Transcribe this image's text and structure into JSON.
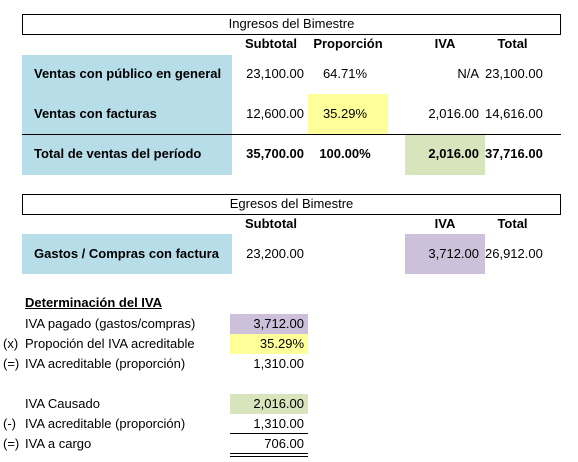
{
  "ingresos": {
    "title": "Ingresos del Bimestre",
    "headers": [
      "Subtotal",
      "Proporción",
      "IVA",
      "Total"
    ],
    "rows": [
      {
        "label": "Ventas con público en general",
        "cells": [
          "23,100.00",
          "64.71%",
          "N/A",
          "23,100.00"
        ]
      },
      {
        "label": "Ventas con facturas",
        "cells": [
          "12,600.00",
          "35.29%",
          "2,016.00",
          "14,616.00"
        ]
      },
      {
        "label": "Total de ventas del período",
        "cells": [
          "35,700.00",
          "100.00%",
          "2,016.00",
          "37,716.00"
        ]
      }
    ]
  },
  "egresos": {
    "title": "Egresos del Bimestre",
    "headers": [
      "Subtotal",
      "IVA",
      "Total"
    ],
    "rows": [
      {
        "label": "Gastos / Compras con factura",
        "cells": [
          "23,200.00",
          "3,712.00",
          "26,912.00"
        ]
      }
    ]
  },
  "determinacion": {
    "title": "Determinación del IVA",
    "rows": [
      {
        "label": "IVA pagado (gastos/compras)",
        "value": "3,712.00"
      },
      {
        "operator": "(x)",
        "label": "Propoción del IVA acreditable",
        "value": "35.29%"
      },
      {
        "operator": "(=)",
        "label": "IVA acreditable (proporción)",
        "value": "1,310.00"
      },
      {
        "label": "IVA Causado",
        "value": "2,016.00"
      },
      {
        "operator": "(-)",
        "label": "IVA acreditable (proporción)",
        "value": "1,310.00"
      },
      {
        "operator": "(=)",
        "label": "IVA a cargo",
        "value": "706.00"
      }
    ]
  }
}
